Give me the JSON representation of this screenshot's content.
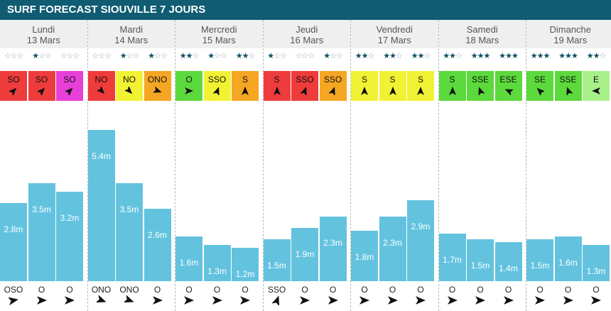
{
  "header": {
    "title": "SURF FORECAST SIOUVILLE 7 JOURS"
  },
  "days": [
    {
      "name": "Lundi",
      "date": "13 Mars",
      "slots": [
        {
          "stars": 0,
          "wind_dir": "SO",
          "wind_color": "#ee3b3b",
          "wind_angle": 45,
          "height_m": 2.8,
          "height": "2.8m",
          "swell_dir": "OSO",
          "swell_angle": 80
        },
        {
          "stars": 1,
          "wind_dir": "SO",
          "wind_color": "#ee3b3b",
          "wind_angle": 45,
          "height_m": 3.5,
          "height": "3.5m",
          "swell_dir": "O",
          "swell_angle": 90
        },
        {
          "stars": 0,
          "wind_dir": "SO",
          "wind_color": "#e83fd9",
          "wind_angle": 45,
          "height_m": 3.2,
          "height": "3.2m",
          "swell_dir": "O",
          "swell_angle": 90
        }
      ]
    },
    {
      "name": "Mardi",
      "date": "14 Mars",
      "slots": [
        {
          "stars": 0,
          "wind_dir": "NO",
          "wind_color": "#ee3b3b",
          "wind_angle": 135,
          "height_m": 5.4,
          "height": "5.4m",
          "swell_dir": "ONO",
          "swell_angle": 110
        },
        {
          "stars": 1,
          "wind_dir": "NO",
          "wind_color": "#f2f234",
          "wind_angle": 135,
          "height_m": 3.5,
          "height": "3.5m",
          "swell_dir": "ONO",
          "swell_angle": 110
        },
        {
          "stars": 1,
          "wind_dir": "ONO",
          "wind_color": "#f5a623",
          "wind_angle": 110,
          "height_m": 2.6,
          "height": "2.6m",
          "swell_dir": "O",
          "swell_angle": 90
        }
      ]
    },
    {
      "name": "Mercredi",
      "date": "15 Mars",
      "slots": [
        {
          "stars": 2,
          "wind_dir": "O",
          "wind_color": "#5cd93c",
          "wind_angle": 90,
          "height_m": 1.6,
          "height": "1.6m",
          "swell_dir": "O",
          "swell_angle": 90
        },
        {
          "stars": 1,
          "wind_dir": "SSO",
          "wind_color": "#f2f234",
          "wind_angle": 20,
          "height_m": 1.3,
          "height": "1.3m",
          "swell_dir": "O",
          "swell_angle": 90
        },
        {
          "stars": 2,
          "wind_dir": "S",
          "wind_color": "#f5a623",
          "wind_angle": 0,
          "height_m": 1.2,
          "height": "1.2m",
          "swell_dir": "O",
          "swell_angle": 90
        }
      ]
    },
    {
      "name": "Jeudi",
      "date": "16 Mars",
      "slots": [
        {
          "stars": 1,
          "wind_dir": "S",
          "wind_color": "#ee3b3b",
          "wind_angle": 0,
          "height_m": 1.5,
          "height": "1.5m",
          "swell_dir": "SSO",
          "swell_angle": 20
        },
        {
          "stars": 0,
          "wind_dir": "SSO",
          "wind_color": "#ee3b3b",
          "wind_angle": 20,
          "height_m": 1.9,
          "height": "1.9m",
          "swell_dir": "O",
          "swell_angle": 90
        },
        {
          "stars": 1,
          "wind_dir": "SSO",
          "wind_color": "#f5a623",
          "wind_angle": 20,
          "height_m": 2.3,
          "height": "2.3m",
          "swell_dir": "O",
          "swell_angle": 90
        }
      ]
    },
    {
      "name": "Vendredi",
      "date": "17 Mars",
      "slots": [
        {
          "stars": 2,
          "wind_dir": "S",
          "wind_color": "#f2f234",
          "wind_angle": 0,
          "height_m": 1.8,
          "height": "1.8m",
          "swell_dir": "O",
          "swell_angle": 90
        },
        {
          "stars": 2,
          "wind_dir": "S",
          "wind_color": "#f2f234",
          "wind_angle": 0,
          "height_m": 2.3,
          "height": "2.3m",
          "swell_dir": "O",
          "swell_angle": 90
        },
        {
          "stars": 2,
          "wind_dir": "S",
          "wind_color": "#f2f234",
          "wind_angle": 0,
          "height_m": 2.9,
          "height": "2.9m",
          "swell_dir": "O",
          "swell_angle": 90
        }
      ]
    },
    {
      "name": "Samedi",
      "date": "18 Mars",
      "slots": [
        {
          "stars": 2,
          "wind_dir": "S",
          "wind_color": "#5cd93c",
          "wind_angle": 0,
          "height_m": 1.7,
          "height": "1.7m",
          "swell_dir": "O",
          "swell_angle": 90
        },
        {
          "stars": 3,
          "wind_dir": "SSE",
          "wind_color": "#5cd93c",
          "wind_angle": -20,
          "height_m": 1.5,
          "height": "1.5m",
          "swell_dir": "O",
          "swell_angle": 90
        },
        {
          "stars": 3,
          "wind_dir": "ESE",
          "wind_color": "#5cd93c",
          "wind_angle": -65,
          "height_m": 1.4,
          "height": "1.4m",
          "swell_dir": "O",
          "swell_angle": 90
        }
      ]
    },
    {
      "name": "Dimanche",
      "date": "19 Mars",
      "slots": [
        {
          "stars": 3,
          "wind_dir": "SE",
          "wind_color": "#5cd93c",
          "wind_angle": -45,
          "height_m": 1.5,
          "height": "1.5m",
          "swell_dir": "O",
          "swell_angle": 90
        },
        {
          "stars": 3,
          "wind_dir": "SSE",
          "wind_color": "#5cd93c",
          "wind_angle": -20,
          "height_m": 1.6,
          "height": "1.6m",
          "swell_dir": "O",
          "swell_angle": 90
        },
        {
          "stars": 2,
          "wind_dir": "E",
          "wind_color": "#a8f08a",
          "wind_angle": -90,
          "height_m": 1.3,
          "height": "1.3m",
          "swell_dir": "O",
          "swell_angle": 90
        }
      ]
    }
  ],
  "colors": {
    "header_bg": "#0f5c73",
    "bar": "#63c3df",
    "star_on": "#0f4f63",
    "star_off": "#9aa7ad"
  }
}
